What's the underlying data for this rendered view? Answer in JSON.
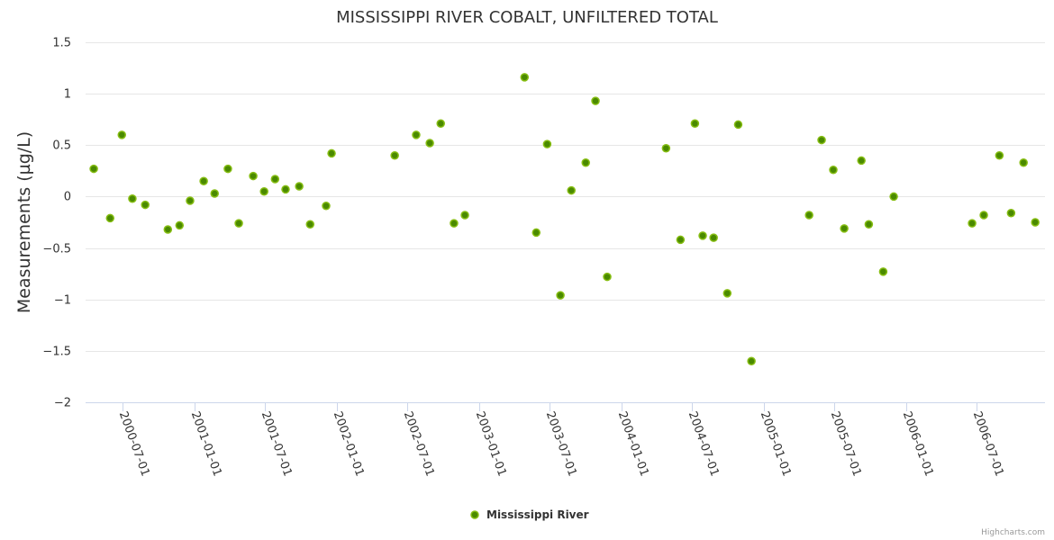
{
  "chart_data": {
    "type": "scatter",
    "title": "MISSISSIPPI RIVER COBALT, UNFILTERED TOTAL",
    "xlabel": "",
    "ylabel": "Measurements (µg/L)",
    "ylim": [
      -2,
      1.5
    ],
    "xlim": [
      "2000-03-28",
      "2006-12-23"
    ],
    "grid": true,
    "legend_position": "bottom-center",
    "y_ticks": [
      1.5,
      1,
      0.5,
      0,
      -0.5,
      -1,
      -1.5,
      -2
    ],
    "y_tick_labels": [
      "1.5",
      "1",
      "0.5",
      "0",
      "−0.5",
      "−1",
      "−1.5",
      "−2"
    ],
    "x_ticks": [
      "2000-07-01",
      "2001-01-01",
      "2001-07-01",
      "2002-01-01",
      "2002-07-01",
      "2003-01-01",
      "2003-07-01",
      "2004-01-01",
      "2004-07-01",
      "2005-01-01",
      "2005-07-01",
      "2006-01-01",
      "2006-07-01"
    ],
    "series": [
      {
        "name": "Mississippi River",
        "color": "#5a9e00",
        "points": [
          [
            "2000-04-18",
            0.27
          ],
          [
            "2000-05-30",
            -0.21
          ],
          [
            "2000-06-29",
            0.6
          ],
          [
            "2000-07-26",
            -0.02
          ],
          [
            "2000-08-28",
            -0.08
          ],
          [
            "2000-10-25",
            -0.32
          ],
          [
            "2000-11-24",
            -0.28
          ],
          [
            "2000-12-21",
            -0.04
          ],
          [
            "2001-01-25",
            0.15
          ],
          [
            "2001-02-22",
            0.03
          ],
          [
            "2001-03-28",
            0.27
          ],
          [
            "2001-04-25",
            -0.26
          ],
          [
            "2001-06-01",
            0.2
          ],
          [
            "2001-06-29",
            0.05
          ],
          [
            "2001-07-27",
            0.17
          ],
          [
            "2001-08-23",
            0.07
          ],
          [
            "2001-09-27",
            0.1
          ],
          [
            "2001-10-25",
            -0.27
          ],
          [
            "2001-12-05",
            -0.09
          ],
          [
            "2001-12-19",
            0.42
          ],
          [
            "2002-05-30",
            0.4
          ],
          [
            "2002-07-24",
            0.6
          ],
          [
            "2002-08-28",
            0.52
          ],
          [
            "2002-09-25",
            0.71
          ],
          [
            "2002-10-29",
            -0.26
          ],
          [
            "2002-11-26",
            -0.18
          ],
          [
            "2003-04-28",
            1.16
          ],
          [
            "2003-05-28",
            -0.35
          ],
          [
            "2003-06-25",
            0.51
          ],
          [
            "2003-07-29",
            -0.96
          ],
          [
            "2003-08-26",
            0.06
          ],
          [
            "2003-10-02",
            0.33
          ],
          [
            "2003-10-27",
            0.93
          ],
          [
            "2003-11-26",
            -0.78
          ],
          [
            "2004-04-25",
            0.47
          ],
          [
            "2004-06-01",
            -0.42
          ],
          [
            "2004-07-08",
            0.71
          ],
          [
            "2004-07-28",
            -0.38
          ],
          [
            "2004-08-25",
            -0.4
          ],
          [
            "2004-09-29",
            -0.94
          ],
          [
            "2004-10-27",
            0.7
          ],
          [
            "2004-11-30",
            -1.6
          ],
          [
            "2005-04-27",
            -0.18
          ],
          [
            "2005-05-29",
            0.55
          ],
          [
            "2005-06-28",
            0.26
          ],
          [
            "2005-07-26",
            -0.31
          ],
          [
            "2005-09-08",
            0.35
          ],
          [
            "2005-09-27",
            -0.27
          ],
          [
            "2005-11-03",
            -0.73
          ],
          [
            "2005-11-30",
            0.0
          ],
          [
            "2006-06-19",
            -0.26
          ],
          [
            "2006-07-19",
            -0.18
          ],
          [
            "2006-08-28",
            0.4
          ],
          [
            "2006-09-27",
            -0.16
          ],
          [
            "2006-10-29",
            0.33
          ],
          [
            "2006-11-28",
            -0.25
          ]
        ]
      }
    ]
  },
  "credits": "Highcharts.com"
}
